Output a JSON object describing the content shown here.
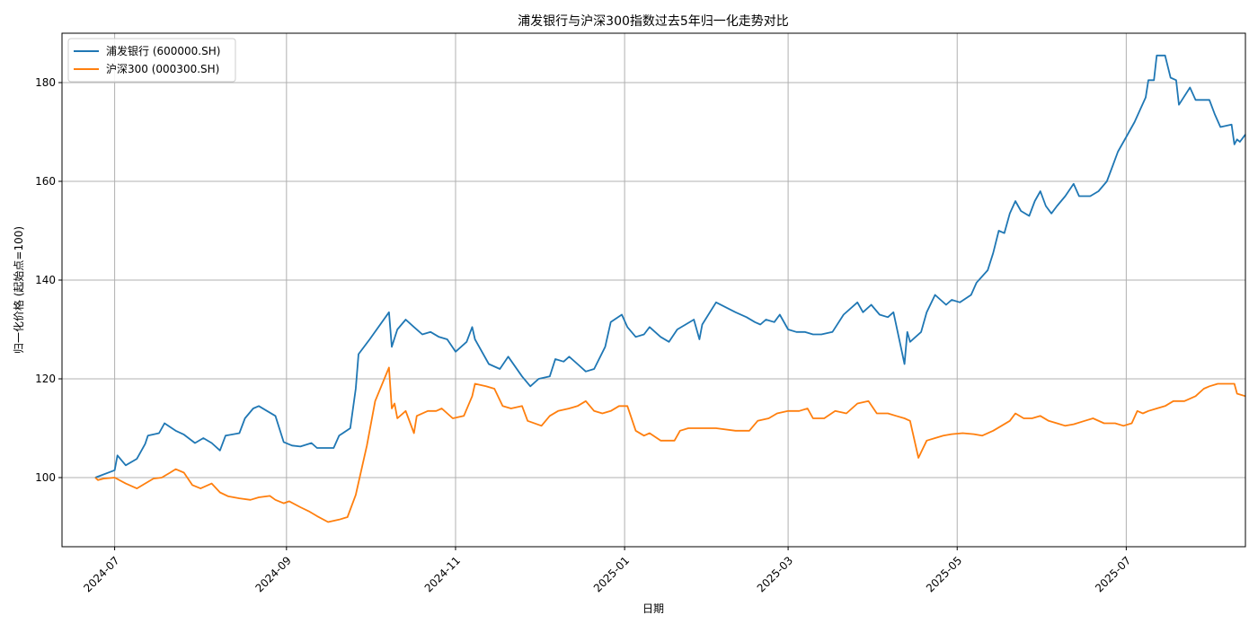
{
  "chart_data": {
    "type": "line",
    "title": "浦发银行与沪深300指数过去5年归一化走势对比",
    "xlabel": "日期",
    "ylabel": "归一化价格 (起始点=100)",
    "xlim": [
      "2024-06-12",
      "2025-08-13"
    ],
    "ylim": [
      86,
      190
    ],
    "x_ticks": [
      "2024-07",
      "2024-09",
      "2024-11",
      "2025-01",
      "2025-03",
      "2025-05",
      "2025-07"
    ],
    "y_ticks": [
      100,
      120,
      140,
      160,
      180
    ],
    "grid": true,
    "legend_position": "top-left",
    "colors": {
      "series1": "#1f77b4",
      "series2": "#ff7f0e",
      "grid": "#b0b0b0"
    },
    "series": [
      {
        "name": "浦发银行 (600000.SH)",
        "points": [
          [
            "2024-06-24",
            100
          ],
          [
            "2024-07-01",
            101.5
          ],
          [
            "2024-07-02",
            104.5
          ],
          [
            "2024-07-05",
            102.5
          ],
          [
            "2024-07-09",
            103.8
          ],
          [
            "2024-07-12",
            106.8
          ],
          [
            "2024-07-13",
            108.5
          ],
          [
            "2024-07-17",
            109
          ],
          [
            "2024-07-19",
            111
          ],
          [
            "2024-07-23",
            109.5
          ],
          [
            "2024-07-26",
            108.7
          ],
          [
            "2024-07-30",
            107
          ],
          [
            "2024-08-02",
            108
          ],
          [
            "2024-08-05",
            107
          ],
          [
            "2024-08-08",
            105.5
          ],
          [
            "2024-08-10",
            108.5
          ],
          [
            "2024-08-15",
            109
          ],
          [
            "2024-08-17",
            112
          ],
          [
            "2024-08-20",
            114
          ],
          [
            "2024-08-22",
            114.5
          ],
          [
            "2024-08-25",
            113.5
          ],
          [
            "2024-08-28",
            112.5
          ],
          [
            "2024-08-31",
            107.2
          ],
          [
            "2024-09-03",
            106.5
          ],
          [
            "2024-09-06",
            106.3
          ],
          [
            "2024-09-10",
            107
          ],
          [
            "2024-09-12",
            106
          ],
          [
            "2024-09-18",
            106
          ],
          [
            "2024-09-20",
            108.5
          ],
          [
            "2024-09-24",
            110
          ],
          [
            "2024-09-26",
            118
          ],
          [
            "2024-09-27",
            125
          ],
          [
            "2024-10-01",
            128
          ],
          [
            "2024-10-08",
            133.5
          ],
          [
            "2024-10-09",
            126.5
          ],
          [
            "2024-10-11",
            130
          ],
          [
            "2024-10-14",
            132
          ],
          [
            "2024-10-17",
            130.5
          ],
          [
            "2024-10-20",
            129
          ],
          [
            "2024-10-23",
            129.5
          ],
          [
            "2024-10-26",
            128.5
          ],
          [
            "2024-10-29",
            128
          ],
          [
            "2024-11-01",
            125.5
          ],
          [
            "2024-11-05",
            127.5
          ],
          [
            "2024-11-07",
            130.5
          ],
          [
            "2024-11-08",
            128
          ],
          [
            "2024-11-13",
            123
          ],
          [
            "2024-11-17",
            122
          ],
          [
            "2024-11-20",
            124.5
          ],
          [
            "2024-11-25",
            120.5
          ],
          [
            "2024-11-28",
            118.5
          ],
          [
            "2024-12-01",
            120
          ],
          [
            "2024-12-05",
            120.5
          ],
          [
            "2024-12-07",
            124
          ],
          [
            "2024-12-10",
            123.5
          ],
          [
            "2024-12-12",
            124.5
          ],
          [
            "2024-12-15",
            123
          ],
          [
            "2024-12-18",
            121.5
          ],
          [
            "2024-12-21",
            122
          ],
          [
            "2024-12-25",
            126.5
          ],
          [
            "2024-12-27",
            131.5
          ],
          [
            "2024-12-31",
            133
          ],
          [
            "2025-01-02",
            130.5
          ],
          [
            "2025-01-05",
            128.5
          ],
          [
            "2025-01-08",
            129
          ],
          [
            "2025-01-10",
            130.5
          ],
          [
            "2025-01-14",
            128.5
          ],
          [
            "2025-01-17",
            127.5
          ],
          [
            "2025-01-20",
            130
          ],
          [
            "2025-01-23",
            131
          ],
          [
            "2025-01-26",
            132
          ],
          [
            "2025-01-28",
            128
          ],
          [
            "2025-01-29",
            131
          ],
          [
            "2025-02-03",
            135.5
          ],
          [
            "2025-02-10",
            133.5
          ],
          [
            "2025-02-14",
            132.5
          ],
          [
            "2025-02-17",
            131.5
          ],
          [
            "2025-02-19",
            131
          ],
          [
            "2025-02-21",
            132
          ],
          [
            "2025-02-24",
            131.5
          ],
          [
            "2025-02-26",
            133
          ],
          [
            "2025-03-01",
            130
          ],
          [
            "2025-03-04",
            129.5
          ],
          [
            "2025-03-07",
            129.5
          ],
          [
            "2025-03-10",
            129
          ],
          [
            "2025-03-13",
            129
          ],
          [
            "2025-03-17",
            129.5
          ],
          [
            "2025-03-21",
            133
          ],
          [
            "2025-03-26",
            135.5
          ],
          [
            "2025-03-28",
            133.5
          ],
          [
            "2025-03-31",
            135
          ],
          [
            "2025-04-03",
            133
          ],
          [
            "2025-04-06",
            132.5
          ],
          [
            "2025-04-08",
            133.5
          ],
          [
            "2025-04-12",
            123
          ],
          [
            "2025-04-13",
            129.5
          ],
          [
            "2025-04-14",
            127.5
          ],
          [
            "2025-04-18",
            129.5
          ],
          [
            "2025-04-20",
            133.5
          ],
          [
            "2025-04-23",
            137
          ],
          [
            "2025-04-27",
            135
          ],
          [
            "2025-04-29",
            136
          ],
          [
            "2025-05-02",
            135.5
          ],
          [
            "2025-05-06",
            137
          ],
          [
            "2025-05-08",
            139.5
          ],
          [
            "2025-05-12",
            142
          ],
          [
            "2025-05-14",
            145.5
          ],
          [
            "2025-05-16",
            150
          ],
          [
            "2025-05-18",
            149.5
          ],
          [
            "2025-05-20",
            153.5
          ],
          [
            "2025-05-22",
            156
          ],
          [
            "2025-05-24",
            154
          ],
          [
            "2025-05-27",
            153
          ],
          [
            "2025-05-29",
            156
          ],
          [
            "2025-05-31",
            158
          ],
          [
            "2025-06-02",
            155
          ],
          [
            "2025-06-04",
            153.5
          ],
          [
            "2025-06-06",
            155
          ],
          [
            "2025-06-09",
            157
          ],
          [
            "2025-06-12",
            159.5
          ],
          [
            "2025-06-14",
            157
          ],
          [
            "2025-06-18",
            157
          ],
          [
            "2025-06-21",
            158
          ],
          [
            "2025-06-24",
            160
          ],
          [
            "2025-06-26",
            163
          ],
          [
            "2025-06-28",
            166
          ],
          [
            "2025-07-01",
            169
          ],
          [
            "2025-07-04",
            172
          ],
          [
            "2025-07-08",
            177
          ],
          [
            "2025-07-09",
            180.5
          ],
          [
            "2025-07-11",
            180.5
          ],
          [
            "2025-07-12",
            185.5
          ],
          [
            "2025-07-15",
            185.5
          ],
          [
            "2025-07-17",
            181
          ],
          [
            "2025-07-19",
            180.5
          ],
          [
            "2025-07-20",
            175.5
          ],
          [
            "2025-07-24",
            179
          ],
          [
            "2025-07-26",
            176.5
          ],
          [
            "2025-07-31",
            176.5
          ],
          [
            "2025-08-02",
            173.5
          ],
          [
            "2025-08-04",
            171
          ],
          [
            "2025-08-08",
            171.5
          ],
          [
            "2025-08-09",
            167.5
          ],
          [
            "2025-08-10",
            168.5
          ],
          [
            "2025-08-11",
            168
          ],
          [
            "2025-08-13",
            169.5
          ]
        ]
      },
      {
        "name": "沪深300 (000300.SH)",
        "points": [
          [
            "2024-06-24",
            100
          ],
          [
            "2024-06-25",
            99.5
          ],
          [
            "2024-06-27",
            99.8
          ],
          [
            "2024-07-01",
            100
          ],
          [
            "2024-07-05",
            98.8
          ],
          [
            "2024-07-09",
            97.8
          ],
          [
            "2024-07-12",
            98.8
          ],
          [
            "2024-07-15",
            99.8
          ],
          [
            "2024-07-18",
            100
          ],
          [
            "2024-07-21",
            101
          ],
          [
            "2024-07-23",
            101.7
          ],
          [
            "2024-07-26",
            101
          ],
          [
            "2024-07-29",
            98.5
          ],
          [
            "2024-08-01",
            97.8
          ],
          [
            "2024-08-05",
            98.8
          ],
          [
            "2024-08-08",
            97
          ],
          [
            "2024-08-11",
            96.2
          ],
          [
            "2024-08-15",
            95.8
          ],
          [
            "2024-08-19",
            95.5
          ],
          [
            "2024-08-22",
            96
          ],
          [
            "2024-08-26",
            96.3
          ],
          [
            "2024-08-28",
            95.5
          ],
          [
            "2024-08-31",
            94.8
          ],
          [
            "2024-09-02",
            95.2
          ],
          [
            "2024-09-06",
            94
          ],
          [
            "2024-09-09",
            93.2
          ],
          [
            "2024-09-12",
            92.2
          ],
          [
            "2024-09-16",
            91
          ],
          [
            "2024-09-20",
            91.5
          ],
          [
            "2024-09-23",
            92
          ],
          [
            "2024-09-26",
            96.5
          ],
          [
            "2024-09-27",
            99
          ],
          [
            "2024-09-30",
            106.5
          ],
          [
            "2024-10-03",
            115.5
          ],
          [
            "2024-10-08",
            122.3
          ],
          [
            "2024-10-09",
            114
          ],
          [
            "2024-10-10",
            115
          ],
          [
            "2024-10-11",
            112
          ],
          [
            "2024-10-14",
            113.5
          ],
          [
            "2024-10-17",
            109
          ],
          [
            "2024-10-18",
            112.5
          ],
          [
            "2024-10-22",
            113.5
          ],
          [
            "2024-10-25",
            113.5
          ],
          [
            "2024-10-27",
            114
          ],
          [
            "2024-10-31",
            112
          ],
          [
            "2024-11-04",
            112.5
          ],
          [
            "2024-11-07",
            116.5
          ],
          [
            "2024-11-08",
            119
          ],
          [
            "2024-11-12",
            118.5
          ],
          [
            "2024-11-15",
            118
          ],
          [
            "2024-11-18",
            114.5
          ],
          [
            "2024-11-21",
            114
          ],
          [
            "2024-11-25",
            114.5
          ],
          [
            "2024-11-27",
            111.5
          ],
          [
            "2024-12-02",
            110.5
          ],
          [
            "2024-12-05",
            112.5
          ],
          [
            "2024-12-08",
            113.5
          ],
          [
            "2024-12-12",
            114
          ],
          [
            "2024-12-15",
            114.5
          ],
          [
            "2024-12-18",
            115.5
          ],
          [
            "2024-12-21",
            113.5
          ],
          [
            "2024-12-24",
            113
          ],
          [
            "2024-12-27",
            113.5
          ],
          [
            "2024-12-30",
            114.5
          ],
          [
            "2025-01-02",
            114.5
          ],
          [
            "2025-01-05",
            109.5
          ],
          [
            "2025-01-08",
            108.5
          ],
          [
            "2025-01-10",
            109
          ],
          [
            "2025-01-14",
            107.5
          ],
          [
            "2025-01-19",
            107.5
          ],
          [
            "2025-01-21",
            109.5
          ],
          [
            "2025-01-24",
            110
          ],
          [
            "2025-01-28",
            110
          ],
          [
            "2025-02-03",
            110
          ],
          [
            "2025-02-10",
            109.5
          ],
          [
            "2025-02-15",
            109.5
          ],
          [
            "2025-02-18",
            111.5
          ],
          [
            "2025-02-22",
            112
          ],
          [
            "2025-02-25",
            113
          ],
          [
            "2025-03-01",
            113.5
          ],
          [
            "2025-03-05",
            113.5
          ],
          [
            "2025-03-08",
            114
          ],
          [
            "2025-03-10",
            112
          ],
          [
            "2025-03-14",
            112
          ],
          [
            "2025-03-18",
            113.5
          ],
          [
            "2025-03-22",
            113
          ],
          [
            "2025-03-26",
            115
          ],
          [
            "2025-03-30",
            115.5
          ],
          [
            "2025-04-02",
            113
          ],
          [
            "2025-04-06",
            113
          ],
          [
            "2025-04-09",
            112.5
          ],
          [
            "2025-04-12",
            112
          ],
          [
            "2025-04-14",
            111.5
          ],
          [
            "2025-04-17",
            104
          ],
          [
            "2025-04-20",
            107.5
          ],
          [
            "2025-04-23",
            108
          ],
          [
            "2025-04-26",
            108.5
          ],
          [
            "2025-04-29",
            108.8
          ],
          [
            "2025-05-03",
            109
          ],
          [
            "2025-05-07",
            108.8
          ],
          [
            "2025-05-10",
            108.5
          ],
          [
            "2025-05-14",
            109.5
          ],
          [
            "2025-05-17",
            110.5
          ],
          [
            "2025-05-20",
            111.5
          ],
          [
            "2025-05-22",
            113
          ],
          [
            "2025-05-25",
            112
          ],
          [
            "2025-05-28",
            112
          ],
          [
            "2025-05-31",
            112.5
          ],
          [
            "2025-06-03",
            111.5
          ],
          [
            "2025-06-06",
            111
          ],
          [
            "2025-06-09",
            110.5
          ],
          [
            "2025-06-12",
            110.8
          ],
          [
            "2025-06-16",
            111.5
          ],
          [
            "2025-06-19",
            112
          ],
          [
            "2025-06-23",
            111
          ],
          [
            "2025-06-27",
            111
          ],
          [
            "2025-06-30",
            110.5
          ],
          [
            "2025-07-03",
            111
          ],
          [
            "2025-07-05",
            113.5
          ],
          [
            "2025-07-07",
            113
          ],
          [
            "2025-07-09",
            113.5
          ],
          [
            "2025-07-12",
            114
          ],
          [
            "2025-07-15",
            114.5
          ],
          [
            "2025-07-18",
            115.5
          ],
          [
            "2025-07-22",
            115.5
          ],
          [
            "2025-07-26",
            116.5
          ],
          [
            "2025-07-29",
            118
          ],
          [
            "2025-07-31",
            118.5
          ],
          [
            "2025-08-03",
            119
          ],
          [
            "2025-08-06",
            119
          ],
          [
            "2025-08-09",
            119
          ],
          [
            "2025-08-10",
            117
          ],
          [
            "2025-08-13",
            116.5
          ]
        ]
      }
    ]
  }
}
